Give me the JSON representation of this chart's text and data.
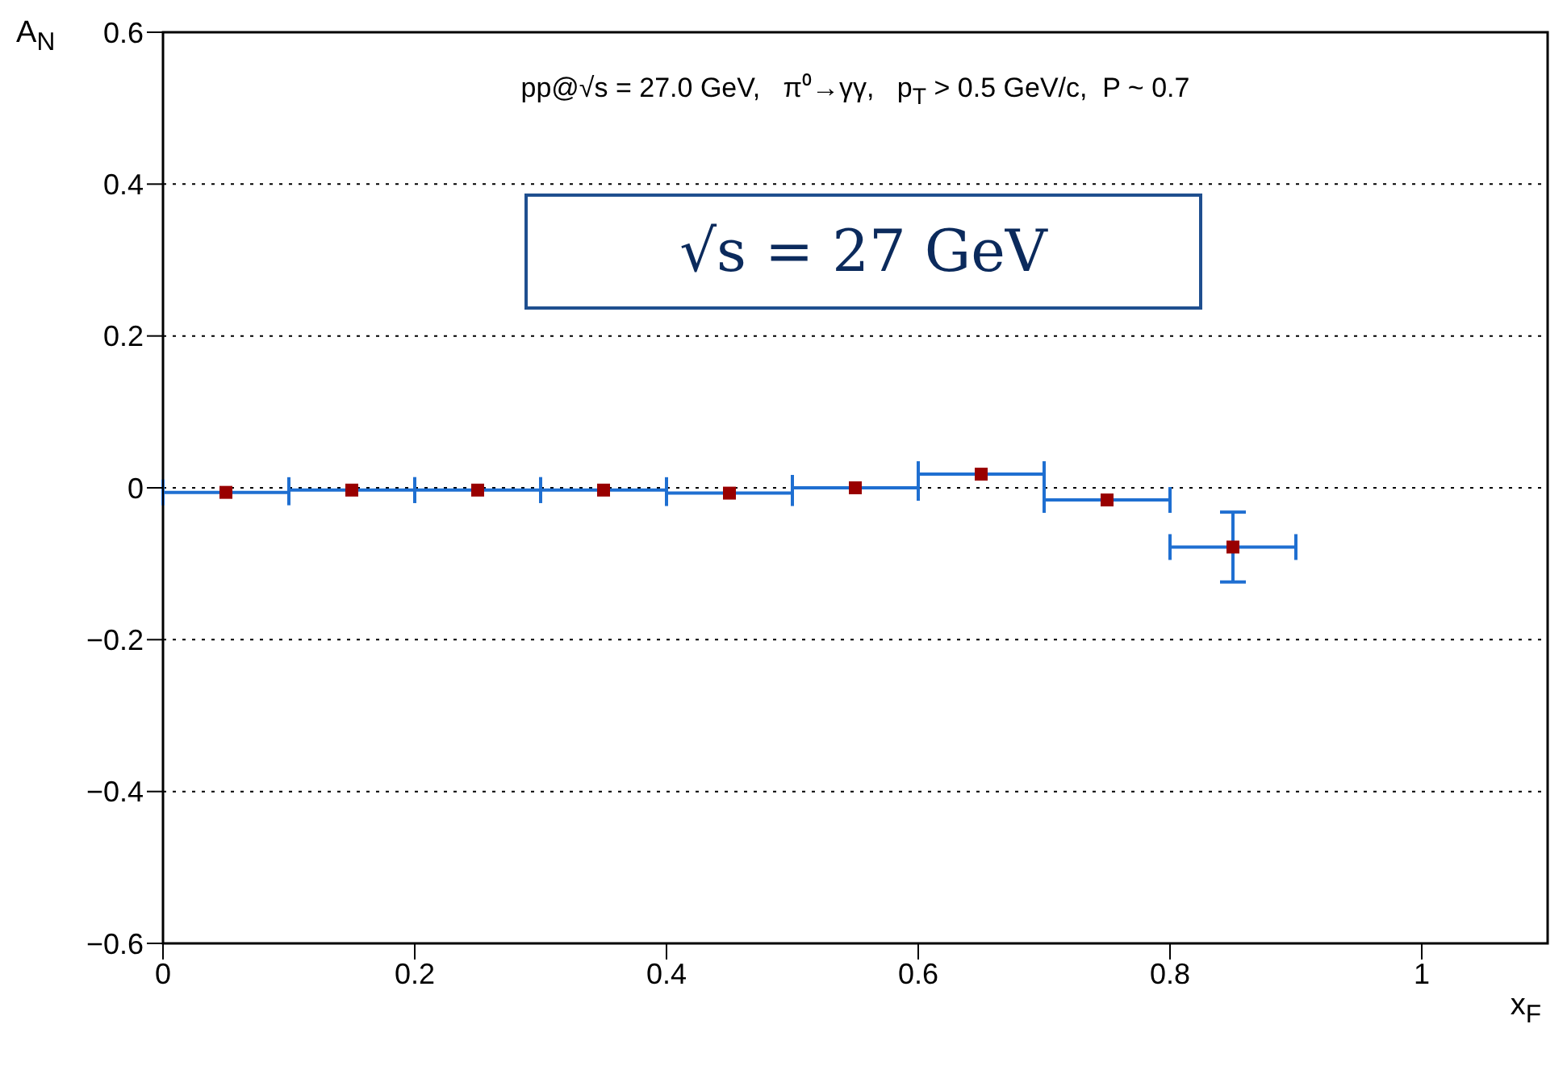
{
  "chart_data": {
    "type": "scatter",
    "title": "pp@√s = 27.0 GeV,   π⁰→γγ,   p$_{T}$ > 0.5 GeV/c,  P ~ 0.7",
    "xlabel": "x$_{F}$",
    "ylabel": "A$_{N}$",
    "annotations": [
      "√s = 27 GeV"
    ],
    "x": [
      0.05,
      0.15,
      0.25,
      0.35,
      0.45,
      0.55,
      0.65,
      0.75,
      0.85
    ],
    "series": [
      {
        "color": "#990000",
        "values": [
          -0.006,
          -0.003,
          -0.003,
          -0.003,
          -0.007,
          0,
          0.018,
          -0.016,
          -0.078
        ],
        "errors": [
          null,
          null,
          null,
          null,
          null,
          null,
          null,
          null,
          0.046
        ],
        "xerrors": [
          0.05,
          0.05,
          0.05,
          0.05,
          0.05,
          0.05,
          0.05,
          0.05,
          0.05
        ]
      }
    ],
    "marker": "square",
    "grid": "y",
    "xlim": [
      0,
      1.1
    ],
    "ylim": [
      -0.6,
      0.6
    ],
    "xticks": [
      0,
      0.2,
      0.4,
      0.6,
      0.8,
      1
    ],
    "yticks": [
      -0.6,
      -0.4,
      -0.2,
      0,
      0.2,
      0.4,
      0.6
    ]
  }
}
